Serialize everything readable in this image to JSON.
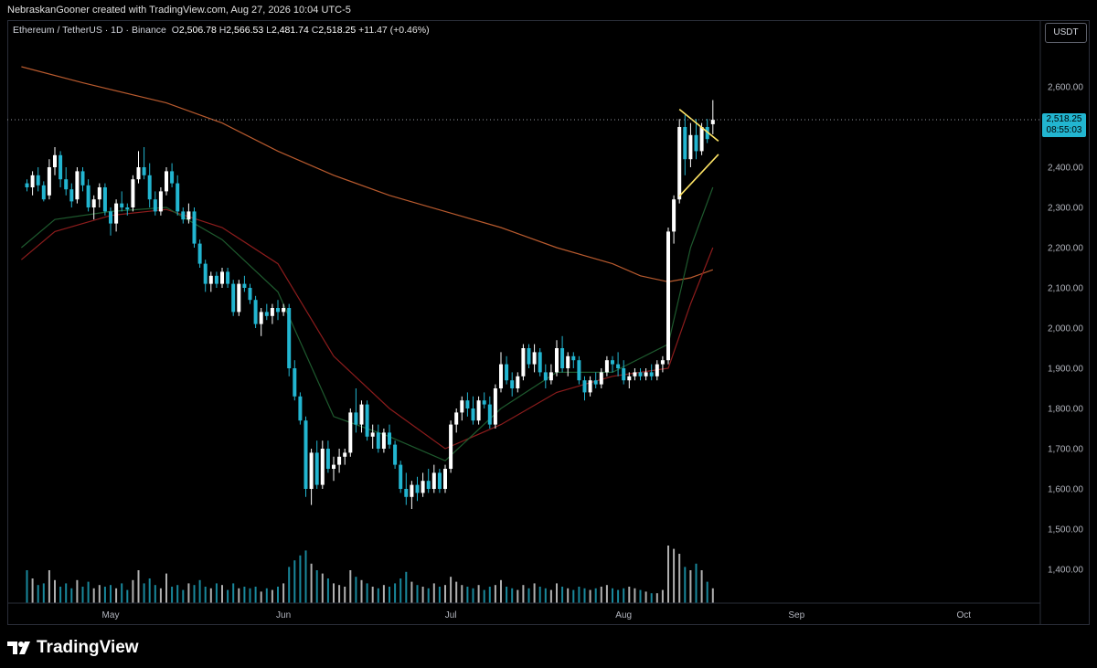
{
  "header": {
    "attribution": "NebraskanGooner created with TradingView.com, Aug 27, 2026 10:04 UTC-5"
  },
  "legend": {
    "symbol": "Ethereum / TetherUS · 1D · Binance",
    "open_label": "O",
    "open": "2,506.78",
    "high_label": "H",
    "high": "2,566.53",
    "low_label": "L",
    "low": "2,481.74",
    "close_label": "C",
    "close": "2,518.25",
    "change": "+11.47 (+0.46%)"
  },
  "currency_button": "USDT",
  "price_tag": {
    "price": "2,518.25",
    "countdown": "08:55:03"
  },
  "footer": {
    "brand": "TradingView"
  },
  "colors": {
    "up": "#ffffff",
    "down": "#22b5d0",
    "ema_fast": "#1e5a2e",
    "ema_mid": "#8c1c1c",
    "ema_slow": "#b85a2e",
    "triangle": "#ffe566"
  },
  "chart_data": {
    "type": "candlestick",
    "y_axis": {
      "ticks": [
        "2,600.00",
        "2,500.00",
        "2,400.00",
        "2,300.00",
        "2,200.00",
        "2,100.00",
        "2,000.00",
        "1,900.00",
        "1,800.00",
        "1,700.00",
        "1,600.00",
        "1,500.00",
        "1,400.00"
      ],
      "tick_values": [
        2600,
        2500,
        2400,
        2300,
        2200,
        2100,
        2000,
        1900,
        1800,
        1700,
        1600,
        1500,
        1400
      ],
      "range": [
        1355,
        2730
      ]
    },
    "x_axis": {
      "ticks": [
        "May",
        "Jun",
        "Jul",
        "Aug",
        "Sep",
        "Oct"
      ],
      "tick_days": [
        0,
        31,
        61,
        92,
        123,
        153
      ]
    },
    "last_price": 2518.25,
    "candles": [
      [
        -15,
        2360,
        2370,
        2340,
        2350
      ],
      [
        -14,
        2350,
        2390,
        2330,
        2380
      ],
      [
        -13,
        2380,
        2400,
        2340,
        2355
      ],
      [
        -12,
        2355,
        2365,
        2315,
        2320
      ],
      [
        -11,
        2330,
        2420,
        2320,
        2400
      ],
      [
        -10,
        2400,
        2450,
        2380,
        2430
      ],
      [
        -9,
        2430,
        2440,
        2350,
        2370
      ],
      [
        -8,
        2370,
        2400,
        2330,
        2345
      ],
      [
        -7,
        2345,
        2360,
        2300,
        2315
      ],
      [
        -6,
        2320,
        2400,
        2310,
        2390
      ],
      [
        -5,
        2390,
        2400,
        2340,
        2355
      ],
      [
        -4,
        2355,
        2370,
        2290,
        2300
      ],
      [
        -3,
        2300,
        2330,
        2270,
        2320
      ],
      [
        -2,
        2320,
        2360,
        2300,
        2350
      ],
      [
        -1,
        2350,
        2360,
        2280,
        2290
      ],
      [
        0,
        2290,
        2300,
        2230,
        2260
      ],
      [
        1,
        2260,
        2320,
        2240,
        2310
      ],
      [
        2,
        2310,
        2340,
        2290,
        2300
      ],
      [
        3,
        2300,
        2310,
        2280,
        2295
      ],
      [
        4,
        2300,
        2380,
        2290,
        2370
      ],
      [
        5,
        2370,
        2440,
        2360,
        2400
      ],
      [
        6,
        2400,
        2450,
        2370,
        2380
      ],
      [
        7,
        2380,
        2410,
        2300,
        2320
      ],
      [
        8,
        2320,
        2340,
        2280,
        2290
      ],
      [
        9,
        2290,
        2350,
        2280,
        2340
      ],
      [
        10,
        2340,
        2400,
        2330,
        2390
      ],
      [
        11,
        2390,
        2410,
        2350,
        2360
      ],
      [
        12,
        2360,
        2380,
        2280,
        2290
      ],
      [
        13,
        2290,
        2300,
        2260,
        2270
      ],
      [
        14,
        2270,
        2310,
        2260,
        2290
      ],
      [
        15,
        2290,
        2300,
        2200,
        2210
      ],
      [
        16,
        2210,
        2220,
        2150,
        2160
      ],
      [
        17,
        2160,
        2170,
        2090,
        2110
      ],
      [
        18,
        2110,
        2140,
        2090,
        2130
      ],
      [
        19,
        2130,
        2140,
        2100,
        2110
      ],
      [
        20,
        2110,
        2150,
        2100,
        2140
      ],
      [
        21,
        2140,
        2150,
        2100,
        2110
      ],
      [
        22,
        2110,
        2120,
        2030,
        2040
      ],
      [
        23,
        2040,
        2120,
        2030,
        2110
      ],
      [
        24,
        2110,
        2130,
        2090,
        2100
      ],
      [
        25,
        2100,
        2110,
        2060,
        2070
      ],
      [
        26,
        2070,
        2080,
        2000,
        2010
      ],
      [
        27,
        2010,
        2050,
        1980,
        2040
      ],
      [
        28,
        2040,
        2060,
        2020,
        2030
      ],
      [
        29,
        2030,
        2060,
        2010,
        2050
      ],
      [
        30,
        2050,
        2070,
        2020,
        2040
      ],
      [
        31,
        2040,
        2060,
        2030,
        2050
      ],
      [
        32,
        2050,
        2060,
        1880,
        1900
      ],
      [
        33,
        1900,
        1920,
        1820,
        1830
      ],
      [
        34,
        1830,
        1840,
        1760,
        1770
      ],
      [
        35,
        1770,
        1780,
        1580,
        1600
      ],
      [
        36,
        1600,
        1700,
        1560,
        1690
      ],
      [
        37,
        1690,
        1720,
        1600,
        1610
      ],
      [
        38,
        1610,
        1720,
        1600,
        1700
      ],
      [
        39,
        1700,
        1720,
        1640,
        1650
      ],
      [
        40,
        1650,
        1680,
        1620,
        1660
      ],
      [
        41,
        1660,
        1700,
        1640,
        1680
      ],
      [
        42,
        1680,
        1700,
        1660,
        1690
      ],
      [
        43,
        1690,
        1800,
        1680,
        1790
      ],
      [
        44,
        1790,
        1850,
        1740,
        1760
      ],
      [
        45,
        1760,
        1820,
        1740,
        1810
      ],
      [
        46,
        1810,
        1820,
        1720,
        1730
      ],
      [
        47,
        1730,
        1760,
        1700,
        1740
      ],
      [
        48,
        1740,
        1760,
        1690,
        1700
      ],
      [
        49,
        1700,
        1750,
        1690,
        1740
      ],
      [
        50,
        1740,
        1760,
        1700,
        1710
      ],
      [
        51,
        1710,
        1720,
        1650,
        1660
      ],
      [
        52,
        1660,
        1670,
        1590,
        1600
      ],
      [
        53,
        1600,
        1640,
        1560,
        1580
      ],
      [
        54,
        1580,
        1620,
        1550,
        1610
      ],
      [
        55,
        1610,
        1630,
        1570,
        1590
      ],
      [
        56,
        1590,
        1640,
        1580,
        1620
      ],
      [
        57,
        1620,
        1650,
        1590,
        1600
      ],
      [
        58,
        1600,
        1660,
        1590,
        1640
      ],
      [
        59,
        1640,
        1650,
        1590,
        1600
      ],
      [
        60,
        1600,
        1660,
        1590,
        1650
      ],
      [
        61,
        1650,
        1770,
        1640,
        1760
      ],
      [
        62,
        1760,
        1800,
        1740,
        1790
      ],
      [
        63,
        1790,
        1830,
        1770,
        1820
      ],
      [
        64,
        1820,
        1840,
        1780,
        1800
      ],
      [
        65,
        1800,
        1830,
        1760,
        1770
      ],
      [
        66,
        1770,
        1830,
        1760,
        1820
      ],
      [
        67,
        1820,
        1840,
        1800,
        1810
      ],
      [
        68,
        1810,
        1830,
        1750,
        1760
      ],
      [
        69,
        1760,
        1860,
        1750,
        1850
      ],
      [
        70,
        1850,
        1940,
        1840,
        1910
      ],
      [
        71,
        1910,
        1930,
        1860,
        1870
      ],
      [
        72,
        1870,
        1890,
        1830,
        1850
      ],
      [
        73,
        1850,
        1890,
        1840,
        1880
      ],
      [
        74,
        1880,
        1960,
        1870,
        1950
      ],
      [
        75,
        1950,
        1960,
        1900,
        1910
      ],
      [
        76,
        1910,
        1960,
        1890,
        1940
      ],
      [
        77,
        1940,
        1950,
        1880,
        1890
      ],
      [
        78,
        1890,
        1910,
        1850,
        1870
      ],
      [
        79,
        1870,
        1910,
        1860,
        1890
      ],
      [
        80,
        1890,
        1970,
        1880,
        1950
      ],
      [
        81,
        1950,
        1980,
        1890,
        1900
      ],
      [
        82,
        1900,
        1940,
        1880,
        1930
      ],
      [
        83,
        1930,
        1940,
        1900,
        1920
      ],
      [
        84,
        1920,
        1930,
        1860,
        1870
      ],
      [
        85,
        1870,
        1880,
        1820,
        1840
      ],
      [
        86,
        1840,
        1880,
        1830,
        1870
      ],
      [
        87,
        1870,
        1890,
        1850,
        1860
      ],
      [
        88,
        1860,
        1900,
        1850,
        1890
      ],
      [
        89,
        1890,
        1930,
        1880,
        1920
      ],
      [
        90,
        1920,
        1930,
        1890,
        1910
      ],
      [
        91,
        1910,
        1940,
        1880,
        1900
      ],
      [
        92,
        1900,
        1920,
        1860,
        1870
      ],
      [
        93,
        1870,
        1890,
        1850,
        1880
      ],
      [
        94,
        1880,
        1900,
        1870,
        1890
      ],
      [
        95,
        1890,
        1900,
        1870,
        1880
      ],
      [
        96,
        1880,
        1900,
        1870,
        1890
      ],
      [
        97,
        1890,
        1910,
        1870,
        1880
      ],
      [
        98,
        1880,
        1920,
        1870,
        1910
      ],
      [
        99,
        1910,
        1930,
        1890,
        1920
      ],
      [
        100,
        1920,
        2250,
        1910,
        2240
      ],
      [
        101,
        2240,
        2330,
        2210,
        2320
      ],
      [
        102,
        2320,
        2520,
        2310,
        2500
      ],
      [
        103,
        2500,
        2530,
        2380,
        2420
      ],
      [
        104,
        2420,
        2510,
        2400,
        2480
      ],
      [
        105,
        2480,
        2520,
        2420,
        2440
      ],
      [
        106,
        2440,
        2510,
        2430,
        2500
      ],
      [
        107,
        2500,
        2520,
        2460,
        2470
      ],
      [
        108,
        2507,
        2567,
        2482,
        2518
      ]
    ],
    "volume": [
      [
        -15,
        1
      ],
      [
        -14,
        0.75
      ],
      [
        -13,
        0.55
      ],
      [
        -12,
        0.6
      ],
      [
        -11,
        1
      ],
      [
        -10,
        0.7
      ],
      [
        -9,
        0.5
      ],
      [
        -8,
        0.6
      ],
      [
        -7,
        0.45
      ],
      [
        -6,
        0.7
      ],
      [
        -5,
        0.5
      ],
      [
        -4,
        0.65
      ],
      [
        -3,
        0.45
      ],
      [
        -2,
        0.55
      ],
      [
        -1,
        0.5
      ],
      [
        0,
        0.55
      ],
      [
        1,
        0.45
      ],
      [
        2,
        0.6
      ],
      [
        3,
        0.4
      ],
      [
        4,
        0.7
      ],
      [
        5,
        1
      ],
      [
        6,
        0.6
      ],
      [
        7,
        0.75
      ],
      [
        8,
        0.55
      ],
      [
        9,
        0.45
      ],
      [
        10,
        0.9
      ],
      [
        11,
        0.5
      ],
      [
        12,
        0.55
      ],
      [
        13,
        0.4
      ],
      [
        14,
        0.6
      ],
      [
        15,
        0.55
      ],
      [
        16,
        0.7
      ],
      [
        17,
        0.5
      ],
      [
        18,
        0.45
      ],
      [
        19,
        0.6
      ],
      [
        20,
        0.55
      ],
      [
        21,
        0.4
      ],
      [
        22,
        0.6
      ],
      [
        23,
        0.45
      ],
      [
        24,
        0.5
      ],
      [
        25,
        0.45
      ],
      [
        26,
        0.5
      ],
      [
        27,
        0.35
      ],
      [
        28,
        0.45
      ],
      [
        29,
        0.4
      ],
      [
        30,
        0.5
      ],
      [
        31,
        0.6
      ],
      [
        32,
        1.1
      ],
      [
        33,
        1.3
      ],
      [
        34,
        1.45
      ],
      [
        35,
        1.6
      ],
      [
        36,
        1.2
      ],
      [
        37,
        1.0
      ],
      [
        38,
        0.9
      ],
      [
        39,
        0.75
      ],
      [
        40,
        0.6
      ],
      [
        41,
        0.55
      ],
      [
        42,
        0.5
      ],
      [
        43,
        1.0
      ],
      [
        44,
        0.8
      ],
      [
        45,
        0.7
      ],
      [
        46,
        0.6
      ],
      [
        47,
        0.5
      ],
      [
        48,
        0.45
      ],
      [
        49,
        0.55
      ],
      [
        50,
        0.5
      ],
      [
        51,
        0.6
      ],
      [
        52,
        0.75
      ],
      [
        53,
        0.95
      ],
      [
        54,
        0.65
      ],
      [
        55,
        0.55
      ],
      [
        56,
        0.5
      ],
      [
        57,
        0.45
      ],
      [
        58,
        0.6
      ],
      [
        59,
        0.5
      ],
      [
        60,
        0.55
      ],
      [
        61,
        0.8
      ],
      [
        62,
        0.65
      ],
      [
        63,
        0.55
      ],
      [
        64,
        0.5
      ],
      [
        65,
        0.45
      ],
      [
        66,
        0.55
      ],
      [
        67,
        0.4
      ],
      [
        68,
        0.5
      ],
      [
        69,
        0.55
      ],
      [
        70,
        0.7
      ],
      [
        71,
        0.5
      ],
      [
        72,
        0.45
      ],
      [
        73,
        0.4
      ],
      [
        74,
        0.55
      ],
      [
        75,
        0.45
      ],
      [
        76,
        0.6
      ],
      [
        77,
        0.5
      ],
      [
        78,
        0.45
      ],
      [
        79,
        0.4
      ],
      [
        80,
        0.6
      ],
      [
        81,
        0.5
      ],
      [
        82,
        0.45
      ],
      [
        83,
        0.4
      ],
      [
        84,
        0.5
      ],
      [
        85,
        0.45
      ],
      [
        86,
        0.4
      ],
      [
        87,
        0.45
      ],
      [
        88,
        0.5
      ],
      [
        89,
        0.55
      ],
      [
        90,
        0.45
      ],
      [
        91,
        0.4
      ],
      [
        92,
        0.45
      ],
      [
        93,
        0.5
      ],
      [
        94,
        0.45
      ],
      [
        95,
        0.4
      ],
      [
        96,
        0.35
      ],
      [
        97,
        0.3
      ],
      [
        98,
        0.3
      ],
      [
        99,
        0.4
      ],
      [
        100,
        1.75
      ],
      [
        101,
        1.65
      ],
      [
        102,
        1.5
      ],
      [
        103,
        1.1
      ],
      [
        104,
        1.0
      ],
      [
        105,
        1.2
      ],
      [
        106,
        1.0
      ],
      [
        107,
        0.65
      ],
      [
        108,
        0.45
      ]
    ],
    "ema_slow": [
      [
        -16,
        2650
      ],
      [
        -5,
        2610
      ],
      [
        10,
        2560
      ],
      [
        20,
        2510
      ],
      [
        30,
        2440
      ],
      [
        40,
        2380
      ],
      [
        50,
        2330
      ],
      [
        60,
        2290
      ],
      [
        70,
        2250
      ],
      [
        80,
        2200
      ],
      [
        90,
        2160
      ],
      [
        95,
        2130
      ],
      [
        100,
        2115
      ],
      [
        104,
        2125
      ],
      [
        108,
        2145
      ]
    ],
    "ema_mid": [
      [
        -16,
        2170
      ],
      [
        -10,
        2240
      ],
      [
        0,
        2280
      ],
      [
        10,
        2295
      ],
      [
        20,
        2250
      ],
      [
        30,
        2160
      ],
      [
        40,
        1930
      ],
      [
        50,
        1800
      ],
      [
        60,
        1700
      ],
      [
        70,
        1760
      ],
      [
        80,
        1840
      ],
      [
        90,
        1880
      ],
      [
        100,
        1900
      ],
      [
        104,
        2060
      ],
      [
        108,
        2200
      ]
    ],
    "ema_fast": [
      [
        -16,
        2200
      ],
      [
        -10,
        2270
      ],
      [
        0,
        2290
      ],
      [
        10,
        2300
      ],
      [
        20,
        2220
      ],
      [
        30,
        2090
      ],
      [
        40,
        1780
      ],
      [
        50,
        1730
      ],
      [
        60,
        1670
      ],
      [
        70,
        1800
      ],
      [
        80,
        1890
      ],
      [
        90,
        1890
      ],
      [
        100,
        1960
      ],
      [
        104,
        2200
      ],
      [
        108,
        2350
      ]
    ],
    "triangle": {
      "upper": [
        [
          102,
          2544
        ],
        [
          109,
          2465
        ]
      ],
      "lower": [
        [
          102,
          2328
        ],
        [
          109,
          2432
        ]
      ]
    }
  }
}
